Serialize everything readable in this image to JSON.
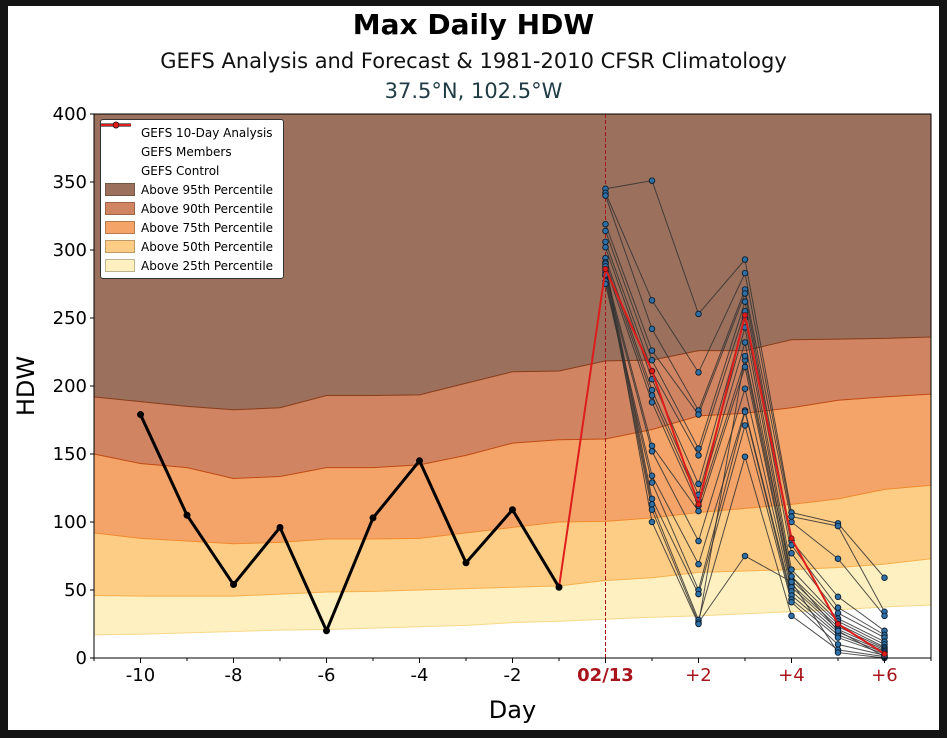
{
  "title": "Max Daily HDW",
  "subtitle": "GEFS Analysis and Forecast & 1981-2010 CFSR Climatology",
  "location": "37.5°N, 102.5°W",
  "chart_data": {
    "type": "line",
    "title": "Max Daily HDW",
    "xlabel": "Day",
    "ylabel": "HDW",
    "xlim": [
      -11,
      7
    ],
    "ylim": [
      0,
      400
    ],
    "x_ticks": [
      {
        "x": -10,
        "label": "-10",
        "color": "#000000",
        "bold": false
      },
      {
        "x": -8,
        "label": "-8",
        "color": "#000000",
        "bold": false
      },
      {
        "x": -6,
        "label": "-6",
        "color": "#000000",
        "bold": false
      },
      {
        "x": -4,
        "label": "-4",
        "color": "#000000",
        "bold": false
      },
      {
        "x": -2,
        "label": "-2",
        "color": "#000000",
        "bold": false
      },
      {
        "x": 0,
        "label": "02/13",
        "color": "#a8141c",
        "bold": true
      },
      {
        "x": 2,
        "label": "+2",
        "color": "#a8141c",
        "bold": false
      },
      {
        "x": 4,
        "label": "+4",
        "color": "#a8141c",
        "bold": false
      },
      {
        "x": 6,
        "label": "+6",
        "color": "#a8141c",
        "bold": false
      }
    ],
    "y_ticks": [
      0,
      50,
      100,
      150,
      200,
      250,
      300,
      350,
      400
    ],
    "today_x": 0,
    "climatology": {
      "x": [
        -11,
        -10,
        -9,
        -8,
        -7,
        -6,
        -5,
        -4,
        -3,
        -2,
        -1,
        0,
        1,
        2,
        3,
        4,
        5,
        6,
        7
      ],
      "p25": [
        17,
        17.5,
        18.5,
        19.5,
        20.5,
        21,
        22,
        23,
        24,
        26,
        27,
        28.5,
        30,
        31,
        32.5,
        34,
        35.5,
        37.5,
        39
      ],
      "p50": [
        46,
        45.5,
        45.5,
        45.5,
        47,
        48.5,
        49,
        50,
        51,
        52,
        53,
        57,
        59,
        63,
        64,
        65,
        66.5,
        69,
        73
      ],
      "p75": [
        92,
        88,
        86,
        84,
        85,
        87.5,
        87.5,
        88,
        92,
        96,
        100,
        100.5,
        103,
        107,
        110,
        113,
        117,
        124,
        127
      ],
      "p90": [
        150,
        143,
        140,
        132,
        133.5,
        140,
        140,
        142,
        149,
        158,
        160.5,
        161,
        168,
        178,
        180,
        184,
        189.5,
        192,
        194
      ],
      "p95": [
        192,
        188.5,
        185,
        182.5,
        184,
        193,
        193,
        193.5,
        202,
        210.5,
        211,
        218.5,
        219,
        226,
        226,
        234,
        234.5,
        235,
        236
      ],
      "top": 400
    },
    "analysis": {
      "name": "GEFS 10-Day Analysis",
      "x": [
        -10,
        -9,
        -8,
        -7,
        -6,
        -5,
        -4,
        -3,
        -2,
        -1
      ],
      "y": [
        179,
        105,
        54,
        96,
        20,
        103,
        145,
        70,
        109,
        52
      ]
    },
    "control": {
      "name": "GEFS Control",
      "x": [
        -1,
        0,
        1,
        2,
        3,
        4,
        5,
        6
      ],
      "y": [
        52,
        286,
        211,
        113,
        252,
        88,
        25,
        3
      ]
    },
    "members": {
      "name": "GEFS Members",
      "x": [
        0,
        1,
        2,
        3,
        4,
        5,
        6
      ],
      "series": [
        [
          345,
          351,
          253,
          293,
          107,
          99,
          59
        ],
        [
          342,
          263,
          210,
          283,
          104,
          97,
          34
        ],
        [
          340,
          242,
          182,
          271,
          100,
          73,
          31
        ],
        [
          319,
          226,
          179,
          268,
          86,
          45,
          20
        ],
        [
          314,
          219,
          154,
          262,
          83,
          37,
          17
        ],
        [
          306,
          211,
          149,
          255,
          77,
          33,
          15
        ],
        [
          302,
          205,
          128,
          250,
          65,
          29,
          12
        ],
        [
          294,
          197,
          120,
          243,
          60,
          27,
          10
        ],
        [
          291,
          193,
          116,
          232,
          57,
          25,
          8
        ],
        [
          288,
          188,
          112,
          219,
          54,
          23,
          7
        ],
        [
          284,
          156,
          108,
          214,
          52,
          21,
          6
        ],
        [
          281,
          152,
          86,
          198,
          49,
          19,
          5
        ],
        [
          277,
          134,
          69,
          182,
          46,
          17,
          4
        ],
        [
          275,
          129,
          50,
          181,
          43,
          15,
          3
        ],
        [
          290,
          117,
          47,
          171,
          41,
          10,
          2
        ],
        [
          286,
          113,
          28,
          148,
          31,
          6,
          1
        ],
        [
          282,
          109,
          26,
          75,
          56,
          4,
          0
        ],
        [
          288,
          100,
          25,
          222,
          60,
          20,
          1
        ]
      ]
    },
    "legend": [
      {
        "label": "GEFS 10-Day Analysis",
        "kind": "line",
        "color": "#000000",
        "width": 3
      },
      {
        "label": "GEFS Members",
        "kind": "line",
        "color": "#333333",
        "width": 1
      },
      {
        "label": "GEFS Control",
        "kind": "line",
        "color": "#dd1c1c",
        "width": 2
      },
      {
        "label": "Above 95th Percentile",
        "kind": "patch",
        "color": "#9b705c"
      },
      {
        "label": "Above 90th Percentile",
        "kind": "patch",
        "color": "#d08462"
      },
      {
        "label": "Above 75th Percentile",
        "kind": "patch",
        "color": "#f4a468"
      },
      {
        "label": "Above 50th Percentile",
        "kind": "patch",
        "color": "#fdcd85"
      },
      {
        "label": "Above 25th Percentile",
        "kind": "patch",
        "color": "#fef0c0"
      }
    ],
    "legend_position": "top-left",
    "colors": {
      "p95": "#9b705c",
      "p90": "#d08462",
      "p75": "#f4a468",
      "p50": "#fdcd85",
      "p25": "#fef0c0",
      "analysis": "#000000",
      "control": "#dd1c1c",
      "members_line": "#333333",
      "members_marker": "#2e6fa6",
      "today_line": "#a8141c"
    }
  }
}
